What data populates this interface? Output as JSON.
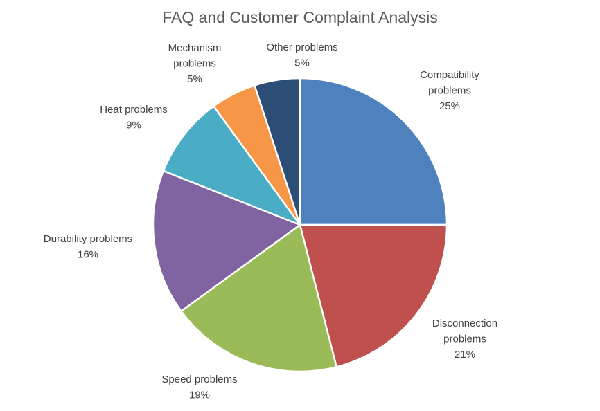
{
  "chart_data": {
    "type": "pie",
    "title": "FAQ and Customer Complaint Analysis",
    "slices": [
      {
        "label": "Compatibility problems",
        "label_lines": [
          "Compatibility",
          "problems"
        ],
        "value": 25,
        "value_label": "25%",
        "color": "#4F81BD"
      },
      {
        "label": "Disconnection problems",
        "label_lines": [
          "Disconnection",
          "problems"
        ],
        "value": 21,
        "value_label": "21%",
        "color": "#C0504D"
      },
      {
        "label": "Speed problems",
        "label_lines": [
          "Speed problems"
        ],
        "value": 19,
        "value_label": "19%",
        "color": "#9BBB59"
      },
      {
        "label": "Durability problems",
        "label_lines": [
          "Durability problems"
        ],
        "value": 16,
        "value_label": "16%",
        "color": "#8064A2"
      },
      {
        "label": "Heat problems",
        "label_lines": [
          "Heat problems"
        ],
        "value": 9,
        "value_label": "9%",
        "color": "#4BACC6"
      },
      {
        "label": "Mechanism problems",
        "label_lines": [
          "Mechanism",
          "problems"
        ],
        "value": 5,
        "value_label": "5%",
        "color": "#F79646"
      },
      {
        "label": "Other problems",
        "label_lines": [
          "Other problems"
        ],
        "value": 5,
        "value_label": "5%",
        "color": "#2C4D75"
      }
    ],
    "legend": "none",
    "start": "12 o'clock, clockwise"
  }
}
